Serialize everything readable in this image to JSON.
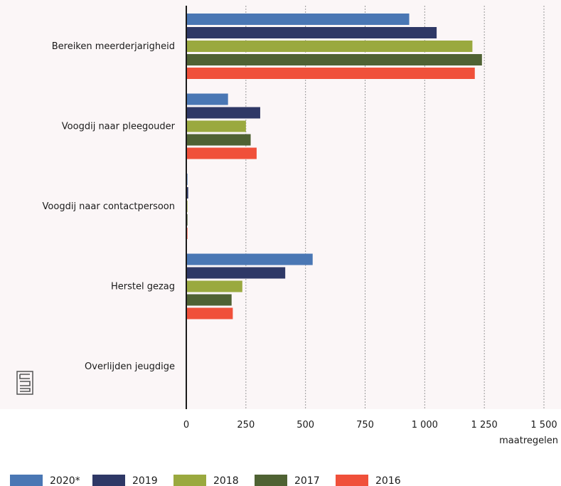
{
  "chart_data": {
    "type": "bar",
    "orientation": "horizontal",
    "categories": [
      "Bereiken meerderjarigheid",
      "Voogdij naar pleegouder",
      "Voogdij naar contactpersoon",
      "Herstel gezag",
      "Overlijden jeugdige"
    ],
    "series": [
      {
        "name": "2020*",
        "color": "#4a77b4",
        "values": [
          935,
          175,
          5,
          530,
          3
        ]
      },
      {
        "name": "2019",
        "color": "#2e3866",
        "values": [
          1050,
          310,
          8,
          415,
          3
        ]
      },
      {
        "name": "2018",
        "color": "#9aa93f",
        "values": [
          1200,
          250,
          5,
          235,
          3
        ]
      },
      {
        "name": "2017",
        "color": "#4f6233",
        "values": [
          1240,
          270,
          5,
          190,
          3
        ]
      },
      {
        "name": "2016",
        "color": "#f0503a",
        "values": [
          1210,
          295,
          5,
          195,
          3
        ]
      }
    ],
    "xaxis": {
      "min": 0,
      "max": 1500,
      "ticks": [
        0,
        250,
        500,
        750,
        1000,
        1250,
        1500
      ],
      "tick_labels": [
        "0",
        "250",
        "500",
        "750",
        "1 000",
        "1 250",
        "1 500"
      ],
      "unit_label": "maatregelen"
    },
    "grid": true,
    "legend_position": "bottom",
    "logo": "cbs-logo"
  }
}
